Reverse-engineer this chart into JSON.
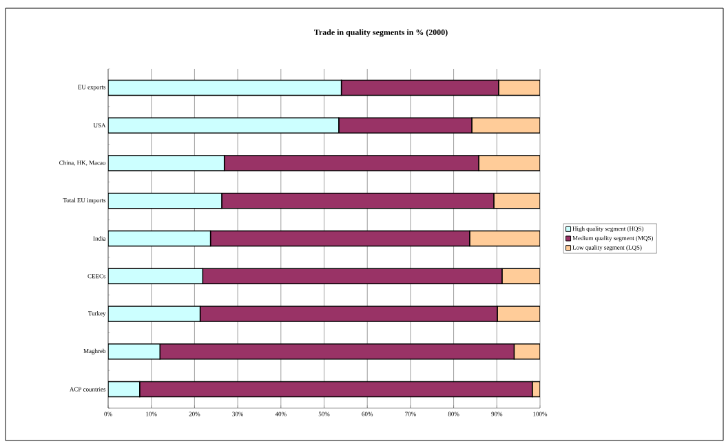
{
  "chart_data": {
    "type": "bar",
    "orientation": "horizontal",
    "stacked": true,
    "title": "Trade in quality segments in % (2000)",
    "categories": [
      "EU exports",
      "USA",
      "China, HK, Macao",
      "Total EU imports",
      "India",
      "CEECs",
      "Turkey",
      "Maghreb",
      "ACP countries"
    ],
    "series": [
      {
        "name": "High quality segment (HQS)",
        "color": "#ccffff",
        "values": [
          54.0,
          53.4,
          26.9,
          26.3,
          23.7,
          21.9,
          21.3,
          12.0,
          7.3
        ]
      },
      {
        "name": "Medium quality segment (MQS)",
        "color": "#993366",
        "values": [
          36.4,
          30.8,
          58.9,
          63.0,
          60.0,
          69.3,
          68.8,
          82.0,
          90.9
        ]
      },
      {
        "name": "Low quality segment (LQS)",
        "color": "#ffcc99",
        "values": [
          9.6,
          15.8,
          14.2,
          10.7,
          16.3,
          8.8,
          9.9,
          6.0,
          1.8
        ]
      }
    ],
    "xlim": [
      0,
      100
    ],
    "xticks": [
      {
        "value": 0,
        "label": "0%"
      },
      {
        "value": 10,
        "label": "10%"
      },
      {
        "value": 20,
        "label": "20%"
      },
      {
        "value": 30,
        "label": "30%"
      },
      {
        "value": 40,
        "label": "40%"
      },
      {
        "value": 50,
        "label": "50%"
      },
      {
        "value": 60,
        "label": "60%"
      },
      {
        "value": 70,
        "label": "70%"
      },
      {
        "value": 80,
        "label": "80%"
      },
      {
        "value": 90,
        "label": "90%"
      },
      {
        "value": 100,
        "label": "100%"
      }
    ],
    "grid": "x",
    "legend": "right"
  }
}
